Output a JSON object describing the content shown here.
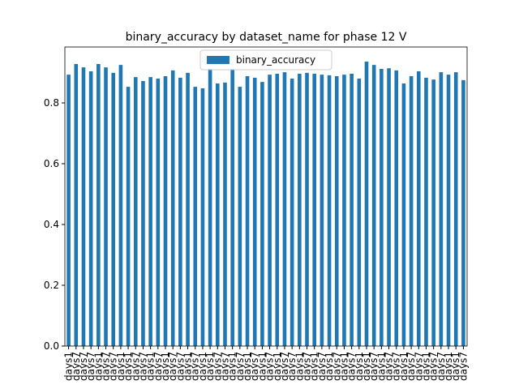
{
  "chart_data": {
    "type": "bar",
    "title": "binary_accuracy by dataset_name for phase 12 V",
    "categories": [
      "days1",
      "days7",
      "days7",
      "days7",
      "days1",
      "days7",
      "days7",
      "days1",
      "days1",
      "days7",
      "days7",
      "days1",
      "days7",
      "days1",
      "days7",
      "days7",
      "days1",
      "days7",
      "days1",
      "days1",
      "days7",
      "days7",
      "days1",
      "days7",
      "days1",
      "days7",
      "days1",
      "days7",
      "days1",
      "days7",
      "days7",
      "days1",
      "days7",
      "days1",
      "days7",
      "days1",
      "days7",
      "days1",
      "days7",
      "days1",
      "days1",
      "days7",
      "days1",
      "days7",
      "days7",
      "days1",
      "days7",
      "days7",
      "days1",
      "days7",
      "days7",
      "days1",
      "days1",
      "days7"
    ],
    "values": [
      0.893,
      0.928,
      0.917,
      0.904,
      0.928,
      0.917,
      0.899,
      0.925,
      0.853,
      0.885,
      0.872,
      0.885,
      0.88,
      0.888,
      0.907,
      0.883,
      0.899,
      0.853,
      0.848,
      0.912,
      0.864,
      0.867,
      0.912,
      0.853,
      0.888,
      0.883,
      0.869,
      0.893,
      0.896,
      0.901,
      0.88,
      0.896,
      0.899,
      0.896,
      0.893,
      0.891,
      0.888,
      0.893,
      0.896,
      0.88,
      0.936,
      0.925,
      0.912,
      0.914,
      0.907,
      0.864,
      0.888,
      0.904,
      0.883,
      0.877,
      0.901,
      0.893,
      0.901,
      0.875
    ],
    "color": "#1f77b4",
    "series_name": "binary_accuracy",
    "ylim": [
      0,
      0.984
    ],
    "yticks": [
      {
        "value": 0,
        "label": "0.0"
      },
      0.2,
      0.4,
      0.6,
      0.8
    ],
    "legend": "upper center"
  }
}
